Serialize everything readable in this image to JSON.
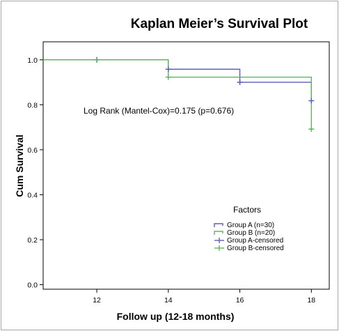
{
  "chart_data": {
    "type": "line",
    "title": "Kaplan Meier’s Survival Plot",
    "xlabel": "Follow up (12-18 months)",
    "ylabel": "Cum Survival",
    "xlim": [
      10.5,
      18.5
    ],
    "ylim": [
      -0.02,
      1.08
    ],
    "x_ticks": [
      12,
      14,
      16,
      18
    ],
    "y_ticks": [
      0.0,
      0.2,
      0.4,
      0.6,
      0.8,
      1.0
    ],
    "y_tick_labels": [
      "0.0",
      "0.2",
      "0.4",
      "0.6",
      "0.8",
      "1.0"
    ],
    "grid": false,
    "step": true,
    "annotation": "Log Rank (Mantel-Cox)=0.175 (p=0.676)",
    "legend": {
      "title": "Factors",
      "placement": "bottom-right",
      "entries": [
        "Group A (n=30)",
        "Group B (n=20)",
        "Group A-censored",
        "Group B-censored"
      ]
    },
    "series": [
      {
        "name": "Group A (n=30)",
        "color": "#5a5fb5",
        "x": [
          10.5,
          14,
          16,
          18,
          18
        ],
        "y": [
          1.0,
          0.958,
          0.9,
          0.9,
          0.818
        ]
      },
      {
        "name": "Group B (n=20)",
        "color": "#5cb85c",
        "x": [
          10.5,
          14,
          18,
          18
        ],
        "y": [
          1.0,
          0.923,
          0.923,
          0.692
        ]
      }
    ],
    "censored": [
      {
        "name": "Group A-censored",
        "color": "#5a5fb5",
        "x": [
          12,
          14,
          16,
          18
        ],
        "y": [
          1.0,
          0.958,
          0.9,
          0.818
        ]
      },
      {
        "name": "Group B-censored",
        "color": "#5cb85c",
        "x": [
          12,
          14,
          18
        ],
        "y": [
          1.0,
          0.923,
          0.692
        ]
      }
    ]
  }
}
